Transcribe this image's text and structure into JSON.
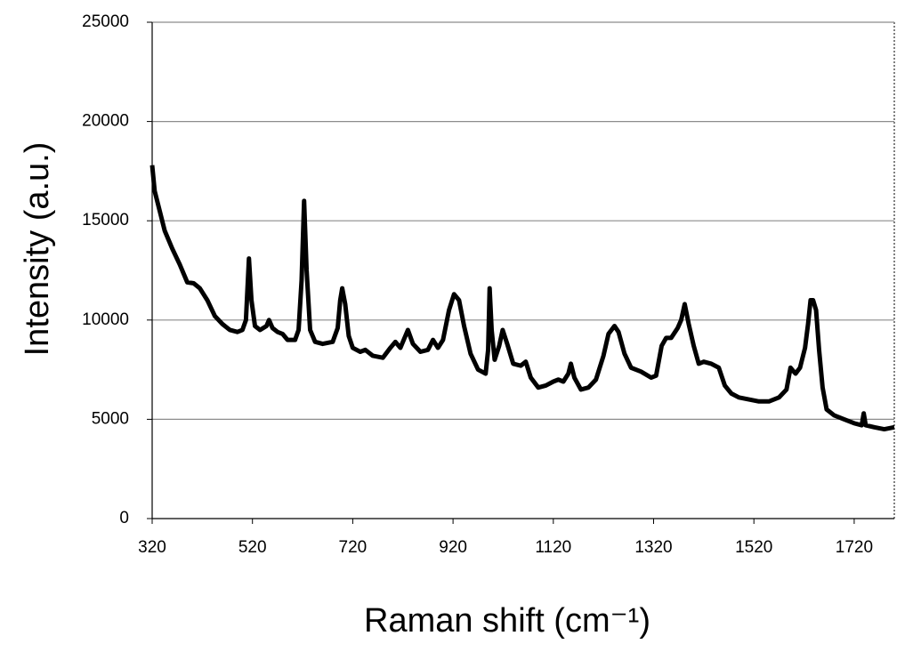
{
  "chart_data": {
    "type": "line",
    "xlabel": "Raman shift (cm⁻¹)",
    "ylabel": "Intensity (a.u.)",
    "color": "#000000",
    "grid": true,
    "xlim": [
      320,
      1800
    ],
    "xticks": [
      320,
      520,
      720,
      920,
      1120,
      1320,
      1520,
      1720
    ],
    "ylim": [
      0,
      25000
    ],
    "yticks": [
      0,
      5000,
      10000,
      15000,
      20000,
      25000
    ],
    "x": [
      320,
      325,
      335,
      345,
      360,
      375,
      390,
      403,
      415,
      430,
      445,
      460,
      475,
      490,
      500,
      507,
      513,
      518,
      525,
      535,
      548,
      553,
      560,
      570,
      580,
      590,
      605,
      612,
      618,
      623,
      628,
      635,
      645,
      660,
      680,
      690,
      695,
      699,
      705,
      712,
      720,
      735,
      745,
      760,
      780,
      795,
      805,
      815,
      830,
      840,
      855,
      870,
      880,
      890,
      900,
      912,
      922,
      932,
      942,
      955,
      970,
      985,
      990,
      993,
      997,
      1003,
      1012,
      1019,
      1028,
      1040,
      1055,
      1065,
      1075,
      1090,
      1105,
      1120,
      1130,
      1140,
      1150,
      1155,
      1162,
      1175,
      1190,
      1205,
      1220,
      1230,
      1242,
      1250,
      1262,
      1275,
      1295,
      1315,
      1325,
      1336,
      1345,
      1355,
      1368,
      1375,
      1382,
      1390,
      1400,
      1410,
      1420,
      1435,
      1450,
      1462,
      1475,
      1490,
      1510,
      1530,
      1550,
      1570,
      1585,
      1593,
      1603,
      1612,
      1622,
      1628,
      1633,
      1638,
      1644,
      1650,
      1657,
      1665,
      1680,
      1700,
      1720,
      1735,
      1739,
      1743,
      1760,
      1780,
      1800
    ],
    "values": [
      17800,
      16500,
      15500,
      14500,
      13600,
      12800,
      11900,
      11850,
      11600,
      11000,
      10200,
      9800,
      9500,
      9400,
      9500,
      10000,
      13100,
      11000,
      9700,
      9500,
      9700,
      10000,
      9600,
      9400,
      9300,
      9000,
      9000,
      9500,
      12000,
      16000,
      12500,
      9500,
      8900,
      8800,
      8900,
      9600,
      11000,
      11600,
      10800,
      9200,
      8600,
      8400,
      8500,
      8200,
      8100,
      8600,
      8900,
      8600,
      9500,
      8800,
      8400,
      8500,
      9000,
      8600,
      9000,
      10500,
      11300,
      11000,
      9700,
      8300,
      7500,
      7300,
      8500,
      11600,
      9500,
      8000,
      8700,
      9500,
      8800,
      7800,
      7700,
      7900,
      7100,
      6600,
      6700,
      6900,
      7000,
      6900,
      7300,
      7800,
      7100,
      6500,
      6600,
      7000,
      8200,
      9300,
      9700,
      9400,
      8300,
      7600,
      7400,
      7100,
      7200,
      8700,
      9100,
      9100,
      9600,
      10000,
      10800,
      9800,
      8700,
      7800,
      7900,
      7800,
      7600,
      6700,
      6300,
      6100,
      6000,
      5900,
      5900,
      6100,
      6500,
      7600,
      7300,
      7600,
      8600,
      9800,
      11000,
      11000,
      10500,
      8500,
      6600,
      5500,
      5200,
      5000,
      4800,
      4700,
      5300,
      4700,
      4600,
      4500,
      4600
    ]
  }
}
